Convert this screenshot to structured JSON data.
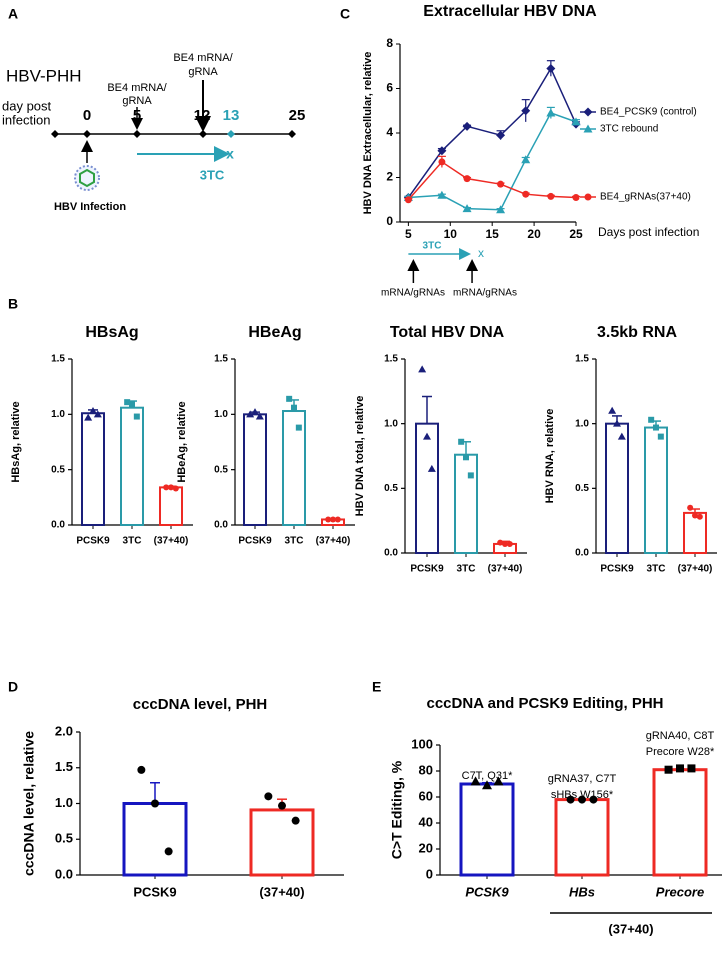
{
  "panel_labels": [
    "A",
    "B",
    "C",
    "D",
    "E"
  ],
  "timeline": {
    "title": "HBV-PHH",
    "day_label": [
      "day post",
      "infection"
    ],
    "days": [
      "0",
      "5",
      "12",
      "13",
      "25"
    ],
    "treatments": [
      [
        "BE4 mRNA/",
        "gRNA"
      ],
      [
        "BE4 mRNA/",
        "gRNA"
      ]
    ],
    "drug": "3TC",
    "stop": "x",
    "infection": "HBV Infection"
  },
  "chart_data": [
    {
      "type": "line",
      "title": "Extracellular HBV DNA",
      "x_label": "Days post infection",
      "y_label": "HBV DNA Extracellular, relative",
      "x": [
        5,
        9,
        12,
        16,
        19,
        22,
        25
      ],
      "xlim": [
        4,
        25
      ],
      "xticks": [
        5,
        10,
        15,
        20,
        25
      ],
      "ylim": [
        0,
        8
      ],
      "yticks": [
        0,
        2,
        4,
        6,
        8
      ],
      "series": [
        {
          "name": "BE4_PCSK9 (control)",
          "color": "#1a1f7a",
          "marker": "diamond",
          "values": [
            1.1,
            3.2,
            4.3,
            3.9,
            5.0,
            6.9,
            4.4
          ],
          "errors": [
            0.05,
            0.1,
            0.05,
            0.2,
            0.5,
            0.35,
            0.1
          ]
        },
        {
          "name": "3TC rebound",
          "color": "#2aa1b5",
          "marker": "triangle",
          "values": [
            1.1,
            1.2,
            0.6,
            0.55,
            2.8,
            4.9,
            4.5
          ],
          "errors": [
            0.05,
            0.05,
            0.05,
            0.05,
            0.1,
            0.25,
            0.1
          ]
        },
        {
          "name": "BE4_gRNAs(37+40)",
          "color": "#ee2a24",
          "marker": "circle",
          "values": [
            1.0,
            2.7,
            1.95,
            1.7,
            1.25,
            1.15,
            1.1
          ],
          "errors": [
            0.05,
            0.25,
            0.05,
            0.05,
            0.05,
            0.05,
            0.05
          ]
        }
      ],
      "annotations": {
        "drug": "3TC",
        "stop": "x",
        "doses": [
          "mRNA/gRNAs",
          "mRNA/gRNAs"
        ]
      }
    },
    {
      "type": "bar",
      "title": "HBsAg",
      "y_label": "HBsAg, relative",
      "categories": [
        "PCSK9",
        "3TC",
        "(37+40)"
      ],
      "values": [
        1.01,
        1.06,
        0.34
      ],
      "errors": [
        0.03,
        0.06,
        0.01
      ],
      "points": [
        [
          0.97,
          1.03,
          1.0
        ],
        [
          1.11,
          1.09,
          0.98
        ],
        [
          0.34,
          0.34,
          0.33
        ]
      ],
      "colors": [
        "#1a1f7a",
        "#2a9aa8",
        "#ee2a24"
      ],
      "markers": [
        "triangle",
        "square",
        "circle"
      ],
      "ylim": [
        0,
        1.5
      ],
      "yticks": [
        {
          "value": 0,
          "label": "0.0"
        },
        0.5,
        {
          "value": 1,
          "label": "1.0"
        },
        1.5
      ]
    },
    {
      "type": "bar",
      "title": "HBeAg",
      "y_label": "HBeAg, relative",
      "categories": [
        "PCSK9",
        "3TC",
        "(37+40)"
      ],
      "values": [
        1.0,
        1.03,
        0.05
      ],
      "errors": [
        0.02,
        0.1,
        0.01
      ],
      "points": [
        [
          1.0,
          1.02,
          0.98
        ],
        [
          1.14,
          1.06,
          0.88
        ],
        [
          0.05,
          0.05,
          0.05
        ]
      ],
      "colors": [
        "#1a1f7a",
        "#2a9aa8",
        "#ee2a24"
      ],
      "markers": [
        "triangle",
        "square",
        "circle"
      ],
      "ylim": [
        0,
        1.5
      ],
      "yticks": [
        {
          "value": 0,
          "label": "0.0"
        },
        0.5,
        {
          "value": 1,
          "label": "1.0"
        },
        1.5
      ]
    },
    {
      "type": "bar",
      "title": "Total HBV DNA",
      "y_label": "HBV  DNA total, relative",
      "categories": [
        "PCSK9",
        "3TC",
        "(37+40)"
      ],
      "values": [
        1.0,
        0.76,
        0.07
      ],
      "errors": [
        0.21,
        0.1,
        0.02
      ],
      "points": [
        [
          1.42,
          0.9,
          0.65
        ],
        [
          0.86,
          0.74,
          0.6
        ],
        [
          0.08,
          0.07,
          0.07
        ]
      ],
      "colors": [
        "#1a1f7a",
        "#2a9aa8",
        "#ee2a24"
      ],
      "markers": [
        "triangle",
        "square",
        "circle"
      ],
      "ylim": [
        0,
        1.5
      ],
      "yticks": [
        {
          "value": 0,
          "label": "0.0"
        },
        0.5,
        {
          "value": 1,
          "label": "1.0"
        },
        1.5
      ]
    },
    {
      "type": "bar",
      "title": "3.5kb RNA",
      "y_label": "HBV  RNA, relative",
      "categories": [
        "PCSK9",
        "3TC",
        "(37+40)"
      ],
      "values": [
        1.0,
        0.97,
        0.31
      ],
      "errors": [
        0.06,
        0.05,
        0.03
      ],
      "points": [
        [
          1.1,
          1.0,
          0.9
        ],
        [
          1.03,
          0.97,
          0.9
        ],
        [
          0.35,
          0.29,
          0.28
        ]
      ],
      "colors": [
        "#1a1f7a",
        "#2a9aa8",
        "#ee2a24"
      ],
      "markers": [
        "triangle",
        "square",
        "circle"
      ],
      "ylim": [
        0,
        1.5
      ],
      "yticks": [
        {
          "value": 0,
          "label": "0.0"
        },
        0.5,
        {
          "value": 1,
          "label": "1.0"
        },
        1.5
      ]
    },
    {
      "type": "bar",
      "title": "cccDNA level, PHH",
      "y_label": "cccDNA level, relative",
      "categories": [
        "PCSK9",
        "(37+40)"
      ],
      "values": [
        1.0,
        0.91
      ],
      "errors": [
        0.29,
        0.15
      ],
      "points": [
        [
          1.47,
          1.0,
          0.33
        ],
        [
          1.1,
          0.97,
          0.76
        ]
      ],
      "colors": [
        "#1515c0",
        "#ee2a24"
      ],
      "markers": [
        "circle",
        "circle"
      ],
      "point_color": "#000000",
      "ylim": [
        0,
        2
      ],
      "yticks": [
        {
          "value": 0,
          "label": "0.0"
        },
        0.5,
        {
          "value": 1,
          "label": "1.0"
        },
        1.5,
        {
          "value": 2,
          "label": "2.0"
        }
      ]
    },
    {
      "type": "bar",
      "title": "cccDNA and PCSK9 Editing, PHH",
      "y_label": "C>T Editing, %",
      "categories": [
        "PCSK9",
        "HBs",
        "Precore"
      ],
      "values": [
        70,
        58,
        81
      ],
      "errors": [
        1,
        0.3,
        0.5
      ],
      "points": [
        [
          72,
          69,
          72
        ],
        [
          58,
          58,
          58
        ],
        [
          81,
          82,
          82
        ]
      ],
      "colors": [
        "#1515c0",
        "#ee2a24",
        "#ee2a24"
      ],
      "markers": [
        "triangle",
        "circle",
        "square"
      ],
      "point_color": "#000000",
      "ylim": [
        0,
        100
      ],
      "yticks": [
        0,
        20,
        40,
        60,
        80,
        100
      ],
      "group_label": "(37+40)",
      "annotations": [
        [
          "C7T, Q31*"
        ],
        [
          "gRNA37, C7T",
          "sHBs W156*"
        ],
        [
          "gRNA40, C8T",
          "Precore W28*"
        ]
      ]
    }
  ]
}
